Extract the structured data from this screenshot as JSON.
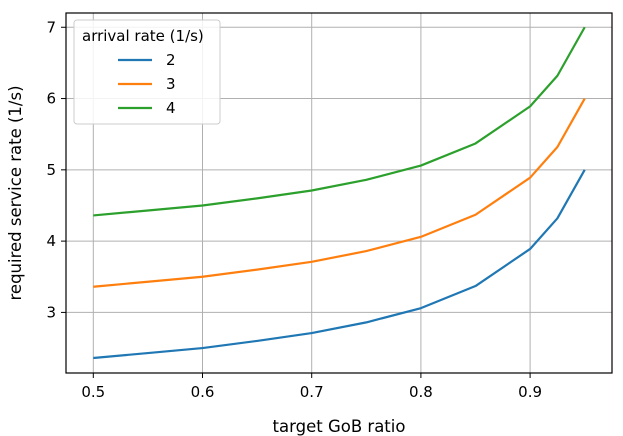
{
  "chart_data": {
    "type": "line",
    "xlabel": "target GoB ratio",
    "ylabel": "required service rate (1/s)",
    "xlim": [
      0.475,
      0.975
    ],
    "ylim": [
      2.15,
      7.2
    ],
    "x_ticks": [
      0.5,
      0.6,
      0.7,
      0.8,
      0.9
    ],
    "x_tick_labels": [
      "0.5",
      "0.6",
      "0.7",
      "0.8",
      "0.9"
    ],
    "y_ticks": [
      3,
      4,
      5,
      6,
      7
    ],
    "y_tick_labels": [
      "3",
      "4",
      "5",
      "6",
      "7"
    ],
    "grid": true,
    "legend": {
      "title": "arrival rate (1/s)",
      "placement": "top-left"
    },
    "x": [
      0.5,
      0.55,
      0.6,
      0.65,
      0.7,
      0.75,
      0.8,
      0.85,
      0.9,
      0.925,
      0.95
    ],
    "series": [
      {
        "name": "2",
        "color": "#1f77b4",
        "values": [
          2.36,
          2.43,
          2.5,
          2.6,
          2.71,
          2.86,
          3.06,
          3.37,
          3.89,
          4.32,
          5.0
        ]
      },
      {
        "name": "3",
        "color": "#ff7f0e",
        "values": [
          3.36,
          3.43,
          3.5,
          3.6,
          3.71,
          3.86,
          4.06,
          4.37,
          4.89,
          5.32,
          6.0
        ]
      },
      {
        "name": "4",
        "color": "#2ca02c",
        "values": [
          4.36,
          4.43,
          4.5,
          4.6,
          4.71,
          4.86,
          5.06,
          5.37,
          5.89,
          6.32,
          7.0
        ]
      }
    ]
  }
}
